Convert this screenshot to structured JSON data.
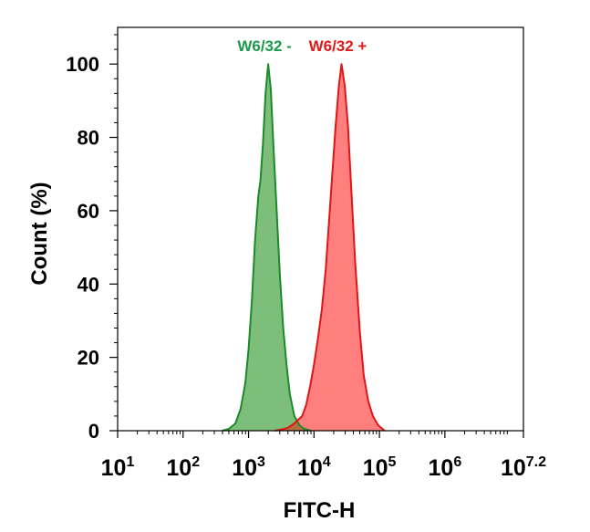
{
  "chart_data": {
    "type": "area",
    "xlabel": "FITC-H",
    "ylabel": "Count  (%)",
    "x_scale": "log10",
    "xlim": [
      1,
      7.2
    ],
    "ylim": [
      0,
      110
    ],
    "x_ticks": [
      {
        "exp": 1,
        "base": "10",
        "sup": "1"
      },
      {
        "exp": 2,
        "base": "10",
        "sup": "2"
      },
      {
        "exp": 3,
        "base": "10",
        "sup": "3"
      },
      {
        "exp": 4,
        "base": "10",
        "sup": "4"
      },
      {
        "exp": 5,
        "base": "10",
        "sup": "5"
      },
      {
        "exp": 6,
        "base": "10",
        "sup": "6"
      },
      {
        "exp": 7.2,
        "base": "10",
        "sup": "7.2"
      }
    ],
    "y_ticks": [
      0,
      20,
      40,
      60,
      80,
      100
    ],
    "grid": false,
    "series": [
      {
        "name": "W6/32 -",
        "stroke": "#1a8a2a",
        "fill": "#7dbf7a",
        "label_color": "#1a9a4a",
        "points": [
          [
            2.6,
            0
          ],
          [
            2.7,
            0.5
          ],
          [
            2.8,
            2
          ],
          [
            2.88,
            6
          ],
          [
            2.95,
            13
          ],
          [
            3.0,
            22
          ],
          [
            3.05,
            35
          ],
          [
            3.1,
            52
          ],
          [
            3.15,
            64
          ],
          [
            3.18,
            68
          ],
          [
            3.22,
            78
          ],
          [
            3.26,
            92
          ],
          [
            3.3,
            100
          ],
          [
            3.34,
            93
          ],
          [
            3.38,
            78
          ],
          [
            3.43,
            60
          ],
          [
            3.48,
            42
          ],
          [
            3.53,
            28
          ],
          [
            3.58,
            18
          ],
          [
            3.63,
            10
          ],
          [
            3.7,
            4
          ],
          [
            3.78,
            1.5
          ],
          [
            3.85,
            0.5
          ],
          [
            3.95,
            0
          ]
        ]
      },
      {
        "name": "W6/32 +",
        "stroke": "#e21515",
        "fill": "#ff7f7f",
        "label_color": "#e21a1a",
        "points": [
          [
            3.4,
            0
          ],
          [
            3.55,
            0.5
          ],
          [
            3.62,
            1
          ],
          [
            3.7,
            2
          ],
          [
            3.76,
            3
          ],
          [
            3.82,
            4
          ],
          [
            3.88,
            7
          ],
          [
            3.94,
            12
          ],
          [
            4.0,
            18
          ],
          [
            4.06,
            25
          ],
          [
            4.12,
            33
          ],
          [
            4.18,
            44
          ],
          [
            4.23,
            57
          ],
          [
            4.28,
            70
          ],
          [
            4.33,
            83
          ],
          [
            4.38,
            94
          ],
          [
            4.42,
            100
          ],
          [
            4.47,
            94
          ],
          [
            4.52,
            83
          ],
          [
            4.57,
            66
          ],
          [
            4.63,
            46
          ],
          [
            4.7,
            27
          ],
          [
            4.76,
            15
          ],
          [
            4.83,
            8
          ],
          [
            4.9,
            4
          ],
          [
            4.98,
            1.5
          ],
          [
            5.08,
            0
          ]
        ]
      }
    ],
    "overlap_fill": "#9a6a2a"
  }
}
